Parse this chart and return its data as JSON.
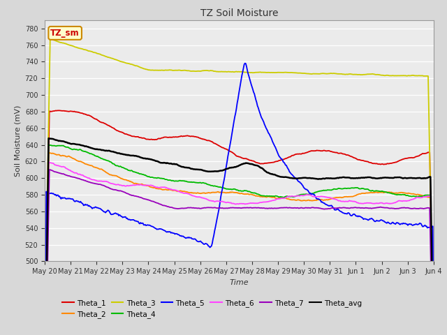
{
  "title": "TZ Soil Moisture",
  "ylabel": "Soil Moisture (mV)",
  "xlabel": "Time",
  "ylim": [
    500,
    790
  ],
  "yticks": [
    500,
    520,
    540,
    560,
    580,
    600,
    620,
    640,
    660,
    680,
    700,
    720,
    740,
    760,
    780
  ],
  "fig_bg_color": "#d8d8d8",
  "plot_bg_color": "#ebebeb",
  "label_box_text": "TZ_sm",
  "label_box_color": "#ffffcc",
  "label_box_text_color": "#cc0000",
  "label_box_edge_color": "#cc8800",
  "tick_labels": [
    "May 20",
    "May 21",
    "May 22",
    "May 23",
    "May 24",
    "May 25",
    "May 26",
    "May 27",
    "May 28",
    "May 29",
    "May 30",
    "May 31",
    "Jun 1",
    "Jun 2",
    "Jun 3",
    "Jun 4"
  ],
  "series_colors": {
    "Theta_1": "#dd0000",
    "Theta_2": "#ff8800",
    "Theta_3": "#cccc00",
    "Theta_4": "#00bb00",
    "Theta_5": "#0000ff",
    "Theta_6": "#ff44ff",
    "Theta_7": "#9900bb",
    "Theta_avg": "#000000"
  },
  "legend_order": [
    "Theta_1",
    "Theta_2",
    "Theta_3",
    "Theta_4",
    "Theta_5",
    "Theta_6",
    "Theta_7",
    "Theta_avg"
  ],
  "n_points": 500,
  "n_days": 15
}
